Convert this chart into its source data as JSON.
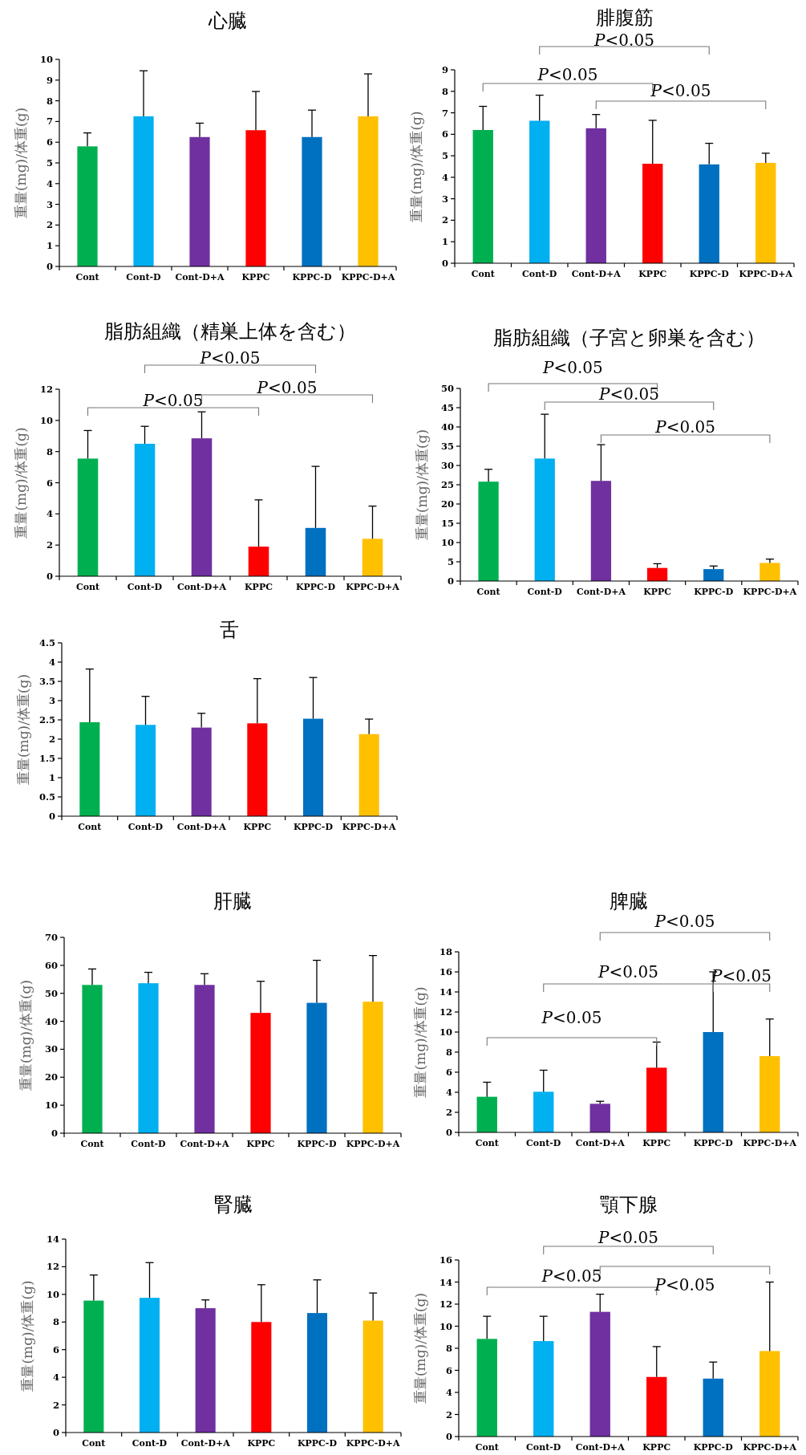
{
  "chart_data": [
    {
      "type": "bar",
      "title": "心臓",
      "ylabel": "重量(mg)/体重(g)",
      "categories": [
        "Cont",
        "Cont-D",
        "Cont-D+A",
        "KPPC",
        "KPPC-D",
        "KPPC-D+A"
      ],
      "colors": [
        "#00b050",
        "#00b0f0",
        "#7030a0",
        "#ff0000",
        "#0070c0",
        "#ffc000"
      ],
      "values": [
        5.8,
        7.25,
        6.25,
        6.58,
        6.25,
        7.25
      ],
      "errors": [
        [
          5.8,
          6.45
        ],
        [
          7.25,
          9.45
        ],
        [
          6.25,
          6.92
        ],
        [
          6.58,
          8.45
        ],
        [
          6.25,
          7.55
        ],
        [
          7.25,
          9.3
        ]
      ],
      "ylim": [
        0,
        10
      ],
      "yticks": [
        0,
        1,
        2,
        3,
        4,
        5,
        6,
        7,
        8,
        9,
        10
      ]
    },
    {
      "type": "bar",
      "title": "腓腹筋",
      "ylabel": "重量(mg)/体重(g)",
      "categories": [
        "Cont",
        "Cont-D",
        "Cont-D+A",
        "KPPC",
        "KPPC-D",
        "KPPC-D+A"
      ],
      "colors": [
        "#00b050",
        "#00b0f0",
        "#7030a0",
        "#ff0000",
        "#0070c0",
        "#ffc000"
      ],
      "values": [
        6.2,
        6.63,
        6.28,
        4.63,
        4.6,
        4.67
      ],
      "errors": [
        [
          6.2,
          7.3
        ],
        [
          6.63,
          7.82
        ],
        [
          6.28,
          6.92
        ],
        [
          4.63,
          6.65
        ],
        [
          4.6,
          5.58
        ],
        [
          4.67,
          5.12
        ]
      ],
      "ylim": [
        0,
        9
      ],
      "yticks": [
        0,
        1,
        2,
        3,
        4,
        5,
        6,
        7,
        8,
        9
      ],
      "annotations": [
        "P<0.05",
        "P<0.05",
        "P<0.05"
      ]
    },
    {
      "type": "bar",
      "title": "脂肪組織（精巣上体を含む）",
      "ylabel": "重量(mg)/体重(g)",
      "categories": [
        "Cont",
        "Cont-D",
        "Cont-D+A",
        "KPPC",
        "KPPC-D",
        "KPPC-D+A"
      ],
      "colors": [
        "#00b050",
        "#00b0f0",
        "#7030a0",
        "#ff0000",
        "#0070c0",
        "#ffc000"
      ],
      "values": [
        7.55,
        8.5,
        8.85,
        1.9,
        3.1,
        2.4
      ],
      "errors": [
        [
          7.55,
          9.35
        ],
        [
          8.5,
          9.62
        ],
        [
          8.85,
          10.55
        ],
        [
          1.9,
          4.9
        ],
        [
          3.1,
          7.05
        ],
        [
          2.4,
          4.5
        ]
      ],
      "ylim": [
        0,
        12
      ],
      "yticks": [
        0,
        2,
        4,
        6,
        8,
        10,
        12
      ],
      "annotations": [
        "P<0.05",
        "P<0.05",
        "P<0.05"
      ]
    },
    {
      "type": "bar",
      "title": "脂肪組織（子宮と卵巣を含む）",
      "ylabel": "重量(mg)/体重(g)",
      "categories": [
        "Cont",
        "Cont-D",
        "Cont-D+A",
        "KPPC",
        "KPPC-D",
        "KPPC-D+A"
      ],
      "colors": [
        "#00b050",
        "#00b0f0",
        "#7030a0",
        "#ff0000",
        "#0070c0",
        "#ffc000"
      ],
      "values": [
        25.8,
        31.8,
        26,
        3.4,
        3.1,
        4.7
      ],
      "errors": [
        [
          25.8,
          29
        ],
        [
          31.8,
          43.3
        ],
        [
          26,
          35.4
        ],
        [
          3.4,
          4.5
        ],
        [
          3.1,
          3.9
        ],
        [
          4.7,
          5.7
        ]
      ],
      "ylim": [
        0,
        50
      ],
      "yticks": [
        0,
        5,
        10,
        15,
        20,
        25,
        30,
        35,
        40,
        45,
        50
      ],
      "annotations": [
        "P<0.05",
        "P<0.05",
        "P<0.05"
      ]
    },
    {
      "type": "bar",
      "title": "舌",
      "ylabel": "重量(mg)/体重(g)",
      "categories": [
        "Cont",
        "Cont-D",
        "Cont-D+A",
        "KPPC",
        "KPPC-D",
        "KPPC-D+A"
      ],
      "colors": [
        "#00b050",
        "#00b0f0",
        "#7030a0",
        "#ff0000",
        "#0070c0",
        "#ffc000"
      ],
      "values": [
        2.44,
        2.37,
        2.3,
        2.41,
        2.53,
        2.13
      ],
      "errors": [
        [
          2.44,
          3.82
        ],
        [
          2.37,
          3.11
        ],
        [
          2.3,
          2.67
        ],
        [
          2.41,
          3.57
        ],
        [
          2.53,
          3.6
        ],
        [
          2.13,
          2.52
        ]
      ],
      "ylim": [
        0,
        4.5
      ],
      "yticks": [
        0,
        0.5,
        1,
        1.5,
        2,
        2.5,
        3,
        3.5,
        4,
        4.5
      ]
    },
    {
      "type": "bar",
      "title": "肝臓",
      "ylabel": "重量(mg)/体重(g)",
      "categories": [
        "Cont",
        "Cont-D",
        "Cont-D+A",
        "KPPC",
        "KPPC-D",
        "KPPC-D+A"
      ],
      "colors": [
        "#00b050",
        "#00b0f0",
        "#7030a0",
        "#ff0000",
        "#0070c0",
        "#ffc000"
      ],
      "values": [
        53,
        53.6,
        53,
        43,
        46.6,
        47
      ],
      "errors": [
        [
          53,
          58.7
        ],
        [
          53.6,
          57.5
        ],
        [
          53,
          57
        ],
        [
          43,
          54.3
        ],
        [
          46.6,
          61.8
        ],
        [
          47,
          63.5
        ]
      ],
      "ylim": [
        0,
        70
      ],
      "yticks": [
        0,
        10,
        20,
        30,
        40,
        50,
        60,
        70
      ]
    },
    {
      "type": "bar",
      "title": "脾臓",
      "ylabel": "重量(mg)/体重(g)",
      "categories": [
        "Cont",
        "Cont-D",
        "Cont-D+A",
        "KPPC",
        "KPPC-D",
        "KPPC-D+A"
      ],
      "colors": [
        "#00b050",
        "#00b0f0",
        "#7030a0",
        "#ff0000",
        "#0070c0",
        "#ffc000"
      ],
      "values": [
        3.55,
        4.05,
        2.85,
        6.45,
        10,
        7.6
      ],
      "errors": [
        [
          3.55,
          5
        ],
        [
          4.05,
          6.2
        ],
        [
          2.85,
          3.1
        ],
        [
          6.45,
          9
        ],
        [
          10,
          16
        ],
        [
          7.6,
          11.3
        ]
      ],
      "ylim": [
        0,
        18
      ],
      "yticks": [
        0,
        2,
        4,
        6,
        8,
        10,
        12,
        14,
        16,
        18
      ],
      "annotations": [
        "P<0.05",
        "P<0.05",
        "P<0.05",
        "P<0.05"
      ]
    },
    {
      "type": "bar",
      "title": "腎臓",
      "ylabel": "重量(mg)/体重(g)",
      "categories": [
        "Cont",
        "Cont-D",
        "Cont-D+A",
        "KPPC",
        "KPPC-D",
        "KPPC-D+A"
      ],
      "colors": [
        "#00b050",
        "#00b0f0",
        "#7030a0",
        "#ff0000",
        "#0070c0",
        "#ffc000"
      ],
      "values": [
        9.55,
        9.75,
        9,
        8,
        8.65,
        8.1
      ],
      "errors": [
        [
          9.55,
          11.4
        ],
        [
          9.75,
          12.3
        ],
        [
          9,
          9.6
        ],
        [
          8,
          10.7
        ],
        [
          8.65,
          11.05
        ],
        [
          8.1,
          10.1
        ]
      ],
      "ylim": [
        0,
        14
      ],
      "yticks": [
        0,
        2,
        4,
        6,
        8,
        10,
        12,
        14
      ]
    },
    {
      "type": "bar",
      "title": "顎下腺",
      "ylabel": "重量(mg)/体重(g)",
      "categories": [
        "Cont",
        "Cont-D",
        "Cont-D+A",
        "KPPC",
        "KPPC-D",
        "KPPC-D+A"
      ],
      "colors": [
        "#00b050",
        "#00b0f0",
        "#7030a0",
        "#ff0000",
        "#0070c0",
        "#ffc000"
      ],
      "values": [
        8.85,
        8.65,
        11.3,
        5.4,
        5.25,
        7.75
      ],
      "errors": [
        [
          8.85,
          10.9
        ],
        [
          8.65,
          10.9
        ],
        [
          11.3,
          12.9
        ],
        [
          5.4,
          8.15
        ],
        [
          5.25,
          6.75
        ],
        [
          7.75,
          14
        ]
      ],
      "ylim": [
        0,
        16
      ],
      "yticks": [
        0,
        2,
        4,
        6,
        8,
        10,
        12,
        14,
        16
      ],
      "annotations": [
        "P<0.05",
        "P<0.05",
        "P<0.05"
      ]
    }
  ]
}
